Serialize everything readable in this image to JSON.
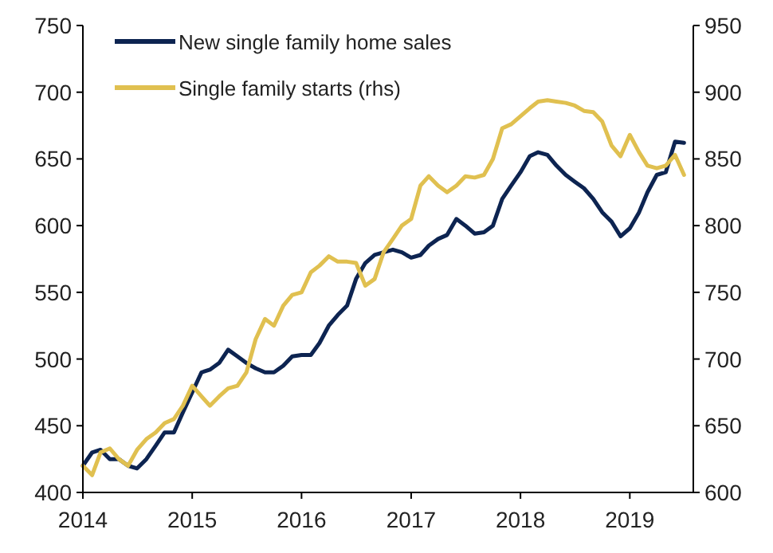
{
  "chart_data": {
    "type": "line",
    "x": [
      "2014-01",
      "2014-02",
      "2014-03",
      "2014-04",
      "2014-05",
      "2014-06",
      "2014-07",
      "2014-08",
      "2014-09",
      "2014-10",
      "2014-11",
      "2014-12",
      "2015-01",
      "2015-02",
      "2015-03",
      "2015-04",
      "2015-05",
      "2015-06",
      "2015-07",
      "2015-08",
      "2015-09",
      "2015-10",
      "2015-11",
      "2015-12",
      "2016-01",
      "2016-02",
      "2016-03",
      "2016-04",
      "2016-05",
      "2016-06",
      "2016-07",
      "2016-08",
      "2016-09",
      "2016-10",
      "2016-11",
      "2016-12",
      "2017-01",
      "2017-02",
      "2017-03",
      "2017-04",
      "2017-05",
      "2017-06",
      "2017-07",
      "2017-08",
      "2017-09",
      "2017-10",
      "2017-11",
      "2017-12",
      "2018-01",
      "2018-02",
      "2018-03",
      "2018-04",
      "2018-05",
      "2018-06",
      "2018-07",
      "2018-08",
      "2018-09",
      "2018-10",
      "2018-11",
      "2018-12",
      "2019-01",
      "2019-02",
      "2019-03",
      "2019-04",
      "2019-05",
      "2019-06",
      "2019-07"
    ],
    "series": [
      {
        "name": "New single family home sales",
        "color": "#0d2451",
        "values": [
          420,
          430,
          432,
          425,
          425,
          420,
          418,
          425,
          435,
          445,
          445,
          460,
          475,
          490,
          492,
          497,
          507,
          502,
          497,
          493,
          490,
          490,
          495,
          502,
          503,
          503,
          512,
          525,
          533,
          540,
          560,
          572,
          578,
          580,
          582,
          580,
          576,
          578,
          585,
          590,
          593,
          605,
          600,
          594,
          595,
          600,
          620,
          630,
          640,
          652,
          655,
          653,
          645,
          638,
          633,
          628,
          620,
          610,
          603,
          592,
          598,
          610,
          625,
          638,
          640,
          663,
          662
        ]
      },
      {
        "name": "Single family starts (rhs)",
        "color": "#e0c050",
        "axis": "y2",
        "values": [
          620,
          613,
          630,
          633,
          625,
          620,
          632,
          640,
          645,
          652,
          655,
          665,
          680,
          672,
          665,
          672,
          678,
          680,
          690,
          715,
          730,
          725,
          740,
          748,
          750,
          765,
          770,
          777,
          773,
          773,
          772,
          755,
          760,
          780,
          790,
          800,
          805,
          830,
          837,
          830,
          825,
          830,
          837,
          836,
          838,
          850,
          873,
          876,
          882,
          888,
          893,
          894,
          893,
          892,
          890,
          886,
          885,
          878,
          860,
          852,
          868,
          855,
          845,
          843,
          845,
          853,
          838
        ]
      }
    ],
    "xlim": [
      "2014-01",
      "2019-08"
    ],
    "xticks": [
      "2014",
      "2015",
      "2016",
      "2017",
      "2018",
      "2019"
    ],
    "ylim": [
      400,
      750
    ],
    "yticks": [
      400,
      450,
      500,
      550,
      600,
      650,
      700,
      750
    ],
    "y2lim": [
      600,
      950
    ],
    "y2ticks": [
      600,
      650,
      700,
      750,
      800,
      850,
      900,
      950
    ],
    "grid": false,
    "legend": "top left",
    "marker": "none",
    "line_style": "solid"
  }
}
